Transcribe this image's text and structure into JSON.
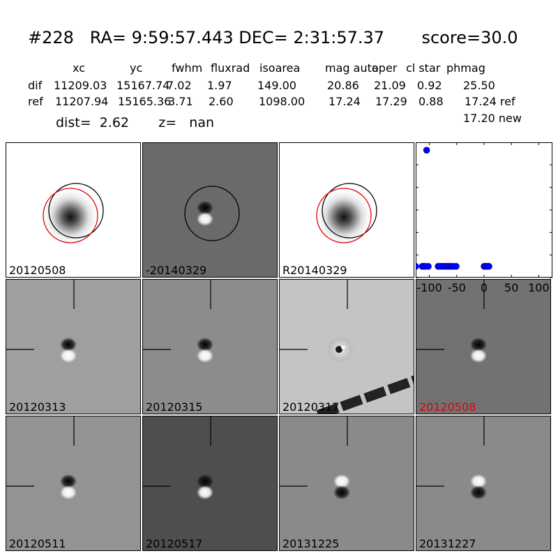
{
  "header": {
    "title": "#228   RA= 9:59:57.443 DEC= 2:31:57.37       score=30.0",
    "columns": [
      "xc",
      "yc",
      "fwhm",
      "fluxrad",
      "isoarea",
      "mag auto",
      "aper",
      "cl star",
      "phmag"
    ],
    "rows": [
      {
        "label": "dif",
        "values": [
          "11209.03",
          "15167.74",
          "7.02",
          "1.97",
          "149.00",
          "20.86",
          "21.09",
          "0.92",
          "25.50"
        ],
        "suffix": ""
      },
      {
        "label": "ref",
        "values": [
          "11207.94",
          "15165.36",
          "3.71",
          "2.60",
          "1098.00",
          "17.24",
          "17.29",
          "0.88",
          "17.24"
        ],
        "suffix": "ref"
      }
    ],
    "new_mag": "17.20 new",
    "dist_line": "dist=  2.62       z=   nan"
  },
  "stamps": [
    {
      "label": "20120508",
      "bg": "#ffffff",
      "kind": "ref",
      "circles": true,
      "crosshair": false,
      "label_color": "#000000"
    },
    {
      "label": "-20140329",
      "bg": "#6a6a6a",
      "kind": "dipole_ud",
      "circles": false,
      "black_circle": true,
      "crosshair": false,
      "label_color": "#000000"
    },
    {
      "label": "R20140329",
      "bg": "#ffffff",
      "kind": "ref",
      "circles": true,
      "crosshair": false,
      "label_color": "#000000"
    },
    {
      "label": "20120313",
      "bg": "#9f9f9f",
      "kind": "dipole_ud",
      "crosshair": true,
      "label_color": "#000000"
    },
    {
      "label": "20120315",
      "bg": "#8c8c8c",
      "kind": "dipole_ud",
      "crosshair": true,
      "label_color": "#000000"
    },
    {
      "label": "20120317",
      "bg": "#c4c4c4",
      "kind": "ring",
      "crosshair": true,
      "streak": true,
      "label_color": "#000000"
    },
    {
      "label": "20120508",
      "bg": "#727272",
      "kind": "dipole_ud",
      "crosshair": true,
      "label_color": "#e00000"
    },
    {
      "label": "20120511",
      "bg": "#939393",
      "kind": "dipole_ud",
      "crosshair": true,
      "label_color": "#000000"
    },
    {
      "label": "20120517",
      "bg": "#4e4e4e",
      "kind": "dipole_ud",
      "crosshair": true,
      "label_color": "#000000"
    },
    {
      "label": "20131225",
      "bg": "#8a8a8a",
      "kind": "dipole_du",
      "crosshair": true,
      "label_color": "#000000"
    },
    {
      "label": "20131227",
      "bg": "#8a8a8a",
      "kind": "dipole_du",
      "crosshair": true,
      "label_color": "#000000"
    }
  ],
  "chart_data": {
    "type": "scatter",
    "title": "",
    "xlabel": "",
    "ylabel": "",
    "xlim": [
      -125,
      125
    ],
    "ylim": [
      26,
      20
    ],
    "xticks": [
      -100,
      -50,
      0,
      50,
      100
    ],
    "yticks": [
      20,
      21,
      22,
      23,
      24,
      25,
      26
    ],
    "marker_color": "#0000ff",
    "series": [
      {
        "x": [
          -125,
          -113,
          -110,
          -108,
          -105,
          -102,
          -84,
          -80,
          -76,
          -72,
          -68,
          -64,
          -60,
          -56,
          -51,
          0,
          3,
          6,
          9
        ],
        "y": [
          25.5,
          25.5,
          25.5,
          25.5,
          20.35,
          25.5,
          25.5,
          25.5,
          25.5,
          25.5,
          25.5,
          25.5,
          25.5,
          25.5,
          25.5,
          25.5,
          25.5,
          25.5,
          25.5
        ]
      }
    ]
  }
}
